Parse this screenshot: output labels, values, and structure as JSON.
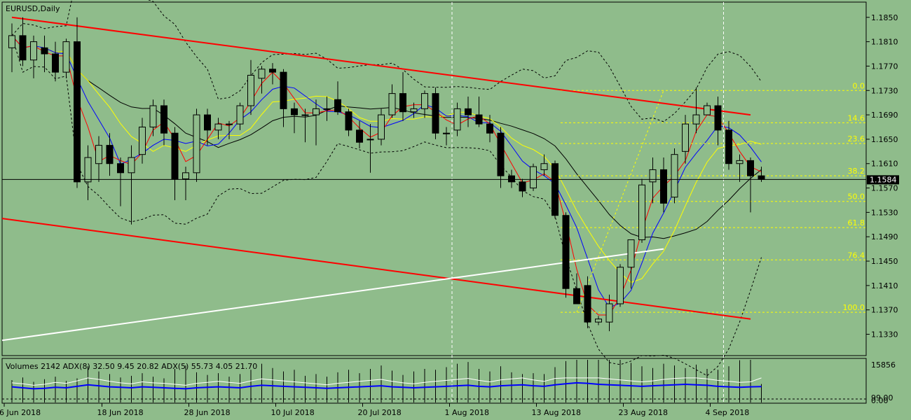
{
  "colors": {
    "background": "#8fbc8b",
    "bull_body": "#8fbc8b",
    "bear_body": "#000000",
    "bollinger": "#000000",
    "ma_fast": "#ff0000",
    "ma_mid": "#0000ff",
    "ma_slow": "#ffff00",
    "channel": "#ff0000",
    "trendline": "#ffffff",
    "fibonacci": "#ffff00",
    "current_price_line": "#000000"
  },
  "chart_data": [
    {
      "type": "candlestick",
      "title": "EURUSD,Daily",
      "ylim": [
        1.1295,
        1.1875
      ],
      "y_ticks": [
        "1.1850",
        "1.1810",
        "1.1770",
        "1.1730",
        "1.1690",
        "1.1650",
        "1.1610",
        "1.1570",
        "1.1530",
        "1.1490",
        "1.1450",
        "1.1410",
        "1.1370",
        "1.1330"
      ],
      "current_price": "1.1584",
      "x_tick_labels": [
        "6 Jun 2018",
        "18 Jun 2018",
        "28 Jun 2018",
        "10 Jul 2018",
        "20 Jul 2018",
        "1 Aug 2018",
        "13 Aug 2018",
        "23 Aug 2018",
        "4 Sep 2018"
      ],
      "x_tick_bar_index": [
        0,
        9,
        17,
        25,
        33,
        41,
        49,
        57,
        65
      ],
      "grid": false,
      "candles_ohlc": [
        [
          1.18,
          1.184,
          1.176,
          1.182
        ],
        [
          1.182,
          1.185,
          1.177,
          1.178
        ],
        [
          1.178,
          1.182,
          1.175,
          1.181
        ],
        [
          1.18,
          1.182,
          1.176,
          1.179
        ],
        [
          1.179,
          1.181,
          1.1745,
          1.176
        ],
        [
          1.176,
          1.1815,
          1.175,
          1.181
        ],
        [
          1.181,
          1.185,
          1.157,
          1.158
        ],
        [
          1.158,
          1.164,
          1.155,
          1.162
        ],
        [
          1.161,
          1.1655,
          1.158,
          1.164
        ],
        [
          1.164,
          1.166,
          1.159,
          1.161
        ],
        [
          1.161,
          1.162,
          1.154,
          1.1595
        ],
        [
          1.1595,
          1.164,
          1.151,
          1.162
        ],
        [
          1.1625,
          1.1685,
          1.161,
          1.167
        ],
        [
          1.167,
          1.1715,
          1.1655,
          1.1705
        ],
        [
          1.1705,
          1.1715,
          1.164,
          1.166
        ],
        [
          1.166,
          1.167,
          1.155,
          1.1585
        ],
        [
          1.1585,
          1.1605,
          1.155,
          1.1595
        ],
        [
          1.1595,
          1.17,
          1.158,
          1.169
        ],
        [
          1.169,
          1.17,
          1.164,
          1.1665
        ],
        [
          1.1665,
          1.1685,
          1.165,
          1.1675
        ],
        [
          1.1675,
          1.168,
          1.165,
          1.1675
        ],
        [
          1.1675,
          1.171,
          1.1665,
          1.1705
        ],
        [
          1.1705,
          1.178,
          1.169,
          1.1755
        ],
        [
          1.175,
          1.177,
          1.1725,
          1.1765
        ],
        [
          1.1765,
          1.1775,
          1.174,
          1.176
        ],
        [
          1.176,
          1.1765,
          1.167,
          1.17
        ],
        [
          1.17,
          1.171,
          1.166,
          1.169
        ],
        [
          1.169,
          1.17,
          1.1645,
          1.169
        ],
        [
          1.169,
          1.1715,
          1.164,
          1.17
        ],
        [
          1.17,
          1.172,
          1.168,
          1.17
        ],
        [
          1.1715,
          1.1745,
          1.169,
          1.1695
        ],
        [
          1.1695,
          1.17,
          1.1655,
          1.1665
        ],
        [
          1.1665,
          1.168,
          1.1635,
          1.1645
        ],
        [
          1.165,
          1.1675,
          1.1595,
          1.165
        ],
        [
          1.165,
          1.17,
          1.164,
          1.169
        ],
        [
          1.169,
          1.174,
          1.1685,
          1.1725
        ],
        [
          1.1725,
          1.176,
          1.168,
          1.1695
        ],
        [
          1.1695,
          1.171,
          1.1685,
          1.17
        ],
        [
          1.17,
          1.173,
          1.1685,
          1.1725
        ],
        [
          1.1725,
          1.1735,
          1.165,
          1.166
        ],
        [
          1.166,
          1.167,
          1.164,
          1.166
        ],
        [
          1.1665,
          1.171,
          1.1655,
          1.17
        ],
        [
          1.17,
          1.172,
          1.167,
          1.169
        ],
        [
          1.169,
          1.172,
          1.167,
          1.1675
        ],
        [
          1.1675,
          1.169,
          1.1645,
          1.166
        ],
        [
          1.166,
          1.167,
          1.157,
          1.159
        ],
        [
          1.159,
          1.16,
          1.157,
          1.158
        ],
        [
          1.158,
          1.1585,
          1.1555,
          1.1565
        ],
        [
          1.157,
          1.161,
          1.1565,
          1.1605
        ],
        [
          1.16,
          1.1625,
          1.159,
          1.161
        ],
        [
          1.161,
          1.1615,
          1.152,
          1.1525
        ],
        [
          1.1525,
          1.153,
          1.139,
          1.1405
        ],
        [
          1.1405,
          1.143,
          1.1385,
          1.138
        ],
        [
          1.141,
          1.1425,
          1.134,
          1.135
        ],
        [
          1.135,
          1.136,
          1.1345,
          1.1355
        ],
        [
          1.135,
          1.1395,
          1.1335,
          1.138
        ],
        [
          1.138,
          1.1445,
          1.1375,
          1.144
        ],
        [
          1.144,
          1.1485,
          1.1405,
          1.1485
        ],
        [
          1.1485,
          1.1585,
          1.148,
          1.1575
        ],
        [
          1.158,
          1.162,
          1.1545,
          1.16
        ],
        [
          1.16,
          1.162,
          1.153,
          1.1545
        ],
        [
          1.1555,
          1.1635,
          1.1545,
          1.1625
        ],
        [
          1.163,
          1.169,
          1.161,
          1.1675
        ],
        [
          1.1675,
          1.1735,
          1.166,
          1.169
        ],
        [
          1.169,
          1.171,
          1.169,
          1.1705
        ],
        [
          1.1705,
          1.172,
          1.164,
          1.1665
        ],
        [
          1.1665,
          1.168,
          1.16,
          1.161
        ],
        [
          1.161,
          1.1625,
          1.158,
          1.1615
        ],
        [
          1.1615,
          1.162,
          1.153,
          1.159
        ],
        [
          1.159,
          1.1605,
          1.158,
          1.1584
        ]
      ],
      "fibonacci_levels": [
        {
          "label": "0.0",
          "price": 1.173
        },
        {
          "label": "14.6",
          "price": 1.1677
        },
        {
          "label": "23.6",
          "price": 1.1643
        },
        {
          "label": "38.2",
          "price": 1.159
        },
        {
          "label": "50.0",
          "price": 1.1548
        },
        {
          "label": "61.8",
          "price": 1.1505
        },
        {
          "label": "76.4",
          "price": 1.1452
        },
        {
          "label": "100.0",
          "price": 1.1366
        }
      ],
      "channel_upper": {
        "start": [
          0,
          1.185
        ],
        "end": [
          68,
          1.169
        ]
      },
      "channel_lower": {
        "start": [
          0,
          1.152
        ],
        "end": [
          68,
          1.1355
        ]
      },
      "trendline": {
        "start": [
          0,
          1.132
        ],
        "end": [
          60,
          1.147
        ]
      }
    },
    {
      "type": "bar",
      "title": "Volumes 2142 ADX(8) 32.50 9.45 20.82 ADX(5) 55.73 4.05 21.70",
      "y_ticks": [
        "15856",
        "0.00"
      ],
      "overlay_label": "99.00",
      "volumes": [
        2600,
        2900,
        2400,
        2700,
        3000,
        2500,
        2800,
        4200,
        3600,
        3300,
        2900,
        3100,
        3400,
        3000,
        2800,
        3900,
        4300,
        3500,
        3200,
        3400,
        3000,
        3300,
        3800,
        4500,
        4000,
        3600,
        3800,
        3100,
        3300,
        3000,
        3500,
        3800,
        3400,
        3900,
        4300,
        3700,
        3200,
        3600,
        3900,
        3800,
        4100,
        4500,
        4700,
        3900,
        3600,
        4200,
        3500,
        3300,
        3400,
        3300,
        4100,
        4800,
        5000,
        5600,
        6100,
        5700,
        5200,
        4600,
        4200,
        4000,
        4500,
        4300,
        4000,
        4400,
        3900,
        3800,
        4200,
        4900,
        5600,
        2142
      ],
      "adx8": [
        32,
        30,
        28,
        29,
        31,
        30,
        33,
        36,
        34,
        32,
        31,
        30,
        32,
        31,
        30,
        29,
        28,
        30,
        31,
        32,
        31,
        30,
        33,
        35,
        34,
        33,
        32,
        31,
        30,
        29,
        30,
        31,
        32,
        33,
        34,
        32,
        31,
        30,
        31,
        32,
        33,
        34,
        35,
        33,
        32,
        34,
        35,
        36,
        34,
        33,
        36,
        38,
        40,
        39,
        37,
        36,
        35,
        34,
        33,
        34,
        35,
        36,
        37,
        36,
        35,
        33,
        32,
        31,
        32,
        32.5
      ],
      "adx5": [
        40,
        38,
        35,
        37,
        41,
        39,
        44,
        50,
        47,
        43,
        40,
        38,
        42,
        40,
        39,
        37,
        35,
        39,
        41,
        43,
        41,
        39,
        44,
        48,
        46,
        44,
        42,
        40,
        38,
        36,
        39,
        41,
        43,
        45,
        47,
        43,
        40,
        38,
        41,
        43,
        45,
        47,
        49,
        45,
        42,
        46,
        48,
        50,
        46,
        43,
        49,
        52,
        55,
        53,
        50,
        48,
        46,
        44,
        42,
        44,
        47,
        49,
        51,
        50,
        48,
        45,
        43,
        41,
        42,
        55.73
      ]
    }
  ]
}
